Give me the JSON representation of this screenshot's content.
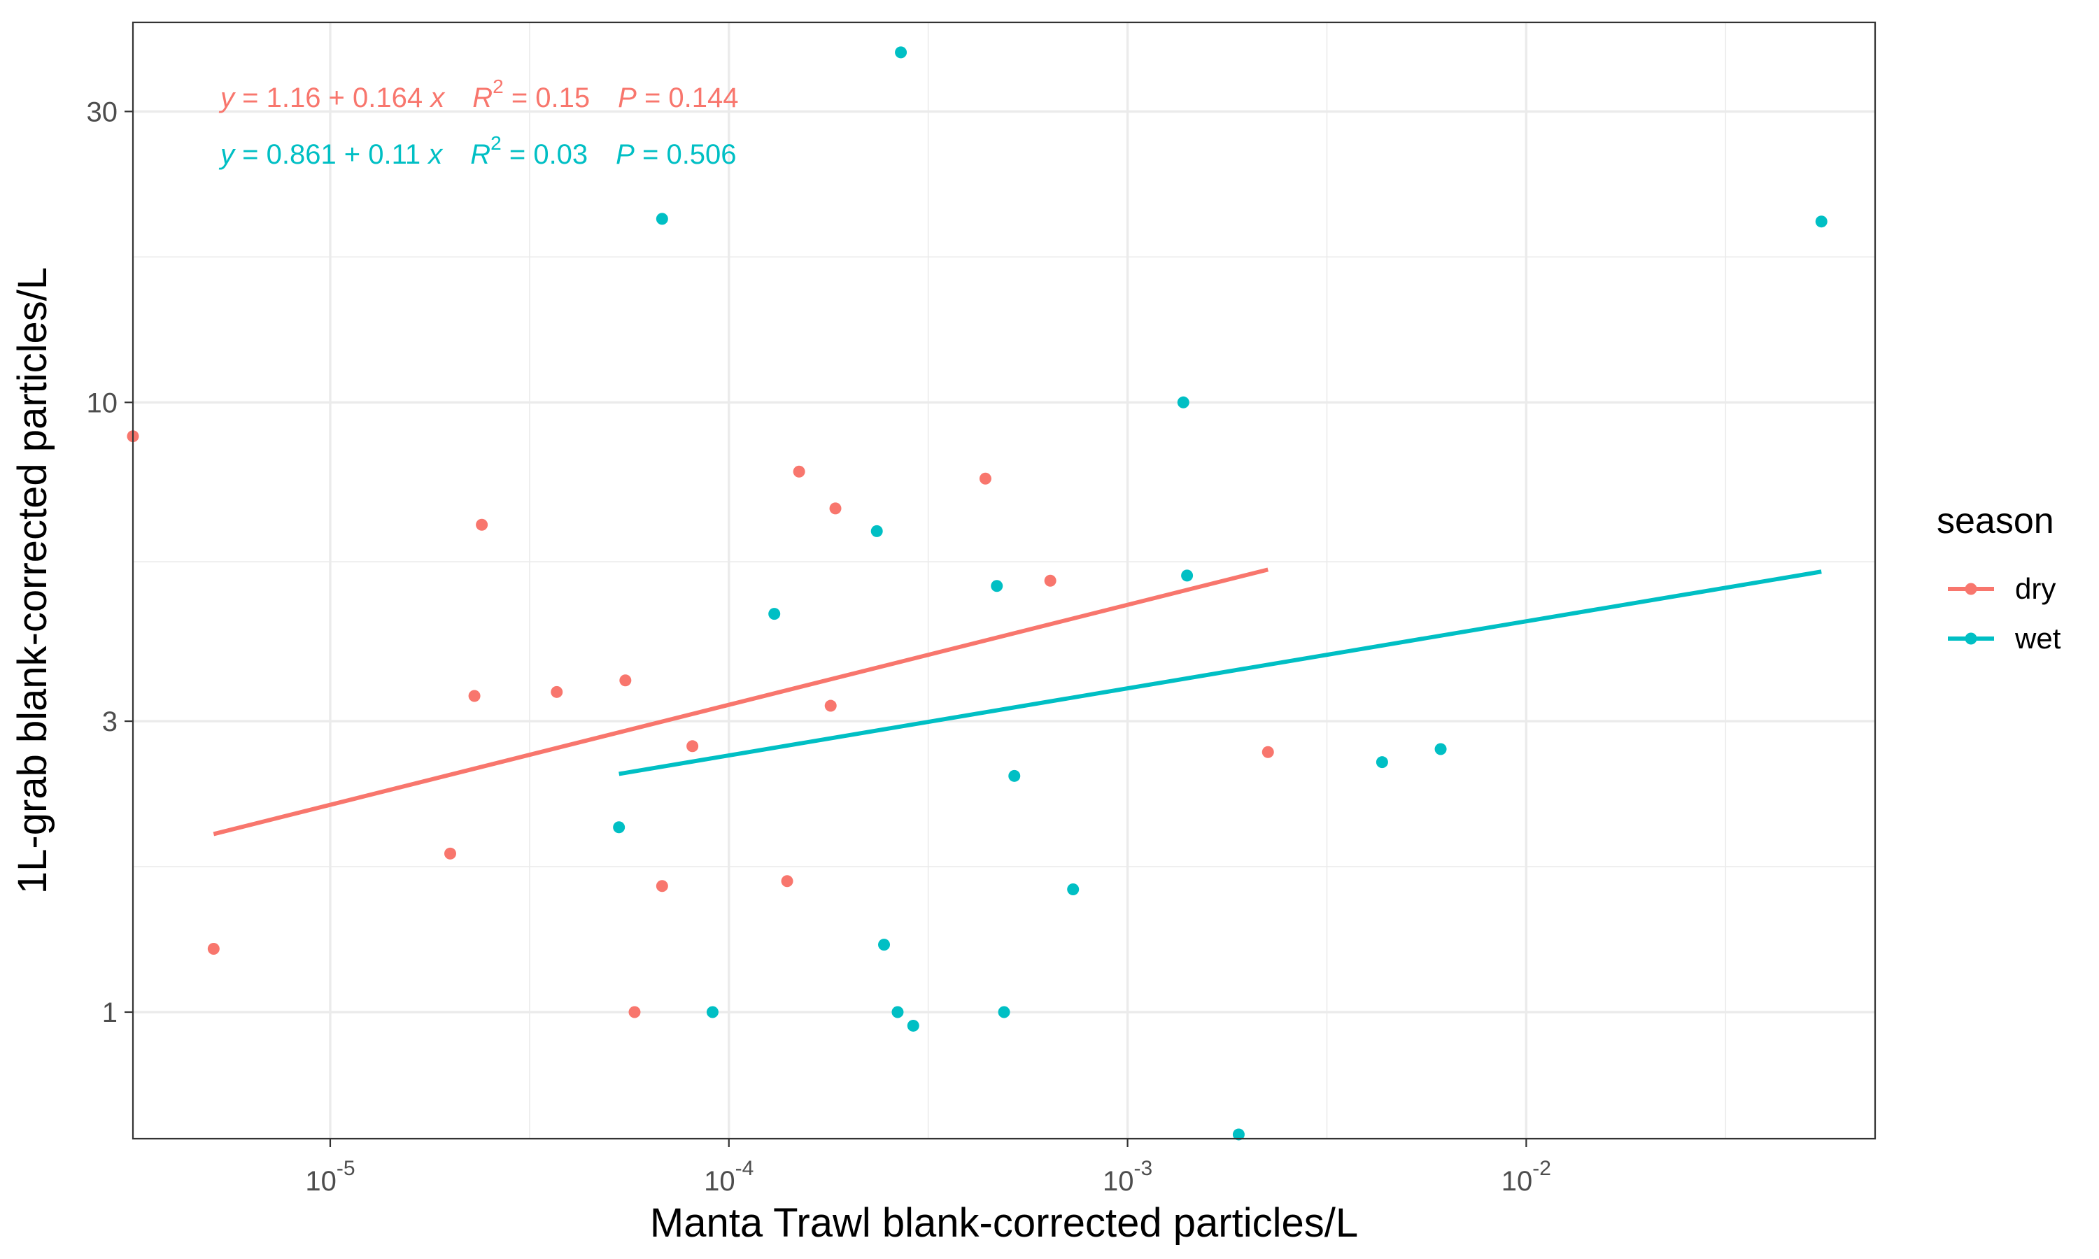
{
  "chart_data": {
    "type": "scatter",
    "xlabel": "Manta Trawl blank-corrected particles/L",
    "ylabel": "1L-grab blank-corrected particles/L",
    "x_scale": "log10",
    "y_scale": "log10",
    "xlim": [
      3.2e-06,
      0.075
    ],
    "ylim": [
      0.62,
      42
    ],
    "x_ticks": [
      {
        "value": 1e-05,
        "base": "10",
        "exp": "-5"
      },
      {
        "value": 0.0001,
        "base": "10",
        "exp": "-4"
      },
      {
        "value": 0.001,
        "base": "10",
        "exp": "-3"
      },
      {
        "value": 0.01,
        "base": "10",
        "exp": "-2"
      }
    ],
    "y_ticks": [
      {
        "value": 1,
        "label": "1"
      },
      {
        "value": 3,
        "label": "3"
      },
      {
        "value": 10,
        "label": "10"
      },
      {
        "value": 30,
        "label": "30"
      }
    ],
    "grid": true,
    "legend": {
      "title": "season",
      "position": "right"
    },
    "series": [
      {
        "name": "dry",
        "color": "#F8766D",
        "points": [
          {
            "x": 3.2e-06,
            "y": 8.8
          },
          {
            "x": 5.1e-06,
            "y": 1.27
          },
          {
            "x": 2e-05,
            "y": 1.82
          },
          {
            "x": 2.3e-05,
            "y": 3.3
          },
          {
            "x": 2.4e-05,
            "y": 6.3
          },
          {
            "x": 3.7e-05,
            "y": 3.35
          },
          {
            "x": 5.5e-05,
            "y": 3.5
          },
          {
            "x": 5.8e-05,
            "y": 1.0
          },
          {
            "x": 6.8e-05,
            "y": 1.61
          },
          {
            "x": 8.1e-05,
            "y": 2.73
          },
          {
            "x": 0.00014,
            "y": 1.64
          },
          {
            "x": 0.00015,
            "y": 7.7
          },
          {
            "x": 0.00018,
            "y": 3.18
          },
          {
            "x": 0.000185,
            "y": 6.7
          },
          {
            "x": 0.00044,
            "y": 7.5
          },
          {
            "x": 0.00064,
            "y": 5.1
          },
          {
            "x": 0.00225,
            "y": 2.67
          }
        ],
        "fit": {
          "x_range": [
            5.1e-06,
            0.00225
          ],
          "intercept": 1.16,
          "slope": 0.164,
          "r2": "0.15",
          "p": "0.144",
          "equation_parts": {
            "y": "y",
            "eq1": " = 1.16 + 0.164 ",
            "x": "x",
            "r": "R",
            "r_exp": "2",
            "eq2": " = 0.15",
            "p": "P",
            "eq3": " = 0.144"
          }
        }
      },
      {
        "name": "wet",
        "color": "#00BFC4",
        "points": [
          {
            "x": 5.3e-05,
            "y": 2.01
          },
          {
            "x": 6.8e-05,
            "y": 20.0
          },
          {
            "x": 9.1e-05,
            "y": 1.0
          },
          {
            "x": 0.00013,
            "y": 4.5
          },
          {
            "x": 0.000235,
            "y": 6.15
          },
          {
            "x": 0.000245,
            "y": 1.29
          },
          {
            "x": 0.000265,
            "y": 1.0
          },
          {
            "x": 0.00027,
            "y": 37.5
          },
          {
            "x": 0.00029,
            "y": 0.95
          },
          {
            "x": 0.00047,
            "y": 5.0
          },
          {
            "x": 0.00049,
            "y": 1.0
          },
          {
            "x": 0.00052,
            "y": 2.44
          },
          {
            "x": 0.00073,
            "y": 1.59
          },
          {
            "x": 0.00138,
            "y": 10.0
          },
          {
            "x": 0.00141,
            "y": 5.2
          },
          {
            "x": 0.0019,
            "y": 0.63
          },
          {
            "x": 0.00435,
            "y": 2.57
          },
          {
            "x": 0.0061,
            "y": 2.7
          },
          {
            "x": 0.055,
            "y": 19.8
          }
        ],
        "fit": {
          "x_range": [
            5.3e-05,
            0.055
          ],
          "intercept": 0.861,
          "slope": 0.11,
          "r2": "0.03",
          "p": "0.506",
          "equation_parts": {
            "y": "y",
            "eq1": " = 0.861 + 0.11 ",
            "x": "x",
            "r": "R",
            "r_exp": "2",
            "eq2": " = 0.03",
            "p": "P",
            "eq3": " = 0.506"
          }
        }
      }
    ]
  }
}
